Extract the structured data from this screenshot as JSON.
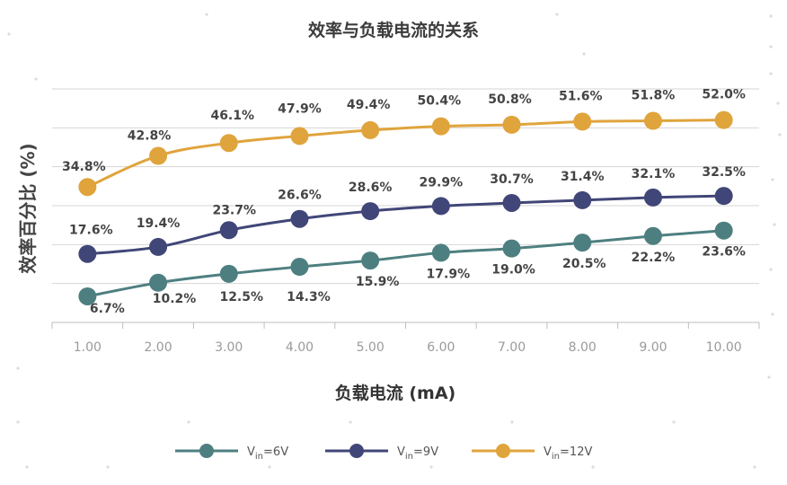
{
  "chart_data": {
    "type": "line",
    "title": "效率与负载电流的关系",
    "ylabel": "效率百分比 (%)",
    "xlabel": "负载电流 (mA)",
    "categories": [
      "1.00",
      "2.00",
      "3.00",
      "4.00",
      "5.00",
      "6.00",
      "7.00",
      "8.00",
      "9.00",
      "10.00"
    ],
    "ylim": [
      0,
      60
    ],
    "grid": true,
    "legend_position": "bottom",
    "series": [
      {
        "name": "Vin=6V",
        "legend_main": "V",
        "legend_sub": "in",
        "legend_rest": "=6V",
        "color": "#4e7f80",
        "values": [
          6.7,
          10.2,
          12.5,
          14.3,
          15.9,
          17.9,
          19.0,
          20.5,
          22.2,
          23.6
        ],
        "labels": [
          "6.7%",
          "10.2%",
          "12.5%",
          "14.3%",
          "15.9%",
          "17.9%",
          "19.0%",
          "20.5%",
          "22.2%",
          "23.6%"
        ]
      },
      {
        "name": "Vin=9V",
        "legend_main": "V",
        "legend_sub": "in",
        "legend_rest": "=9V",
        "color": "#414678",
        "values": [
          17.6,
          19.4,
          23.7,
          26.6,
          28.6,
          29.9,
          30.7,
          31.4,
          32.1,
          32.5
        ],
        "labels": [
          "17.6%",
          "19.4%",
          "23.7%",
          "26.6%",
          "28.6%",
          "29.9%",
          "30.7%",
          "31.4%",
          "32.1%",
          "32.5%"
        ]
      },
      {
        "name": "Vin=12V",
        "legend_main": "V",
        "legend_sub": "in",
        "legend_rest": "=12V",
        "color": "#e0a43c",
        "values": [
          34.8,
          42.8,
          46.1,
          47.9,
          49.4,
          50.4,
          50.8,
          51.6,
          51.8,
          52.0
        ],
        "labels": [
          "34.8%",
          "42.8%",
          "46.1%",
          "47.9%",
          "49.4%",
          "50.4%",
          "50.8%",
          "51.6%",
          "51.8%",
          "52.0%"
        ]
      }
    ]
  }
}
